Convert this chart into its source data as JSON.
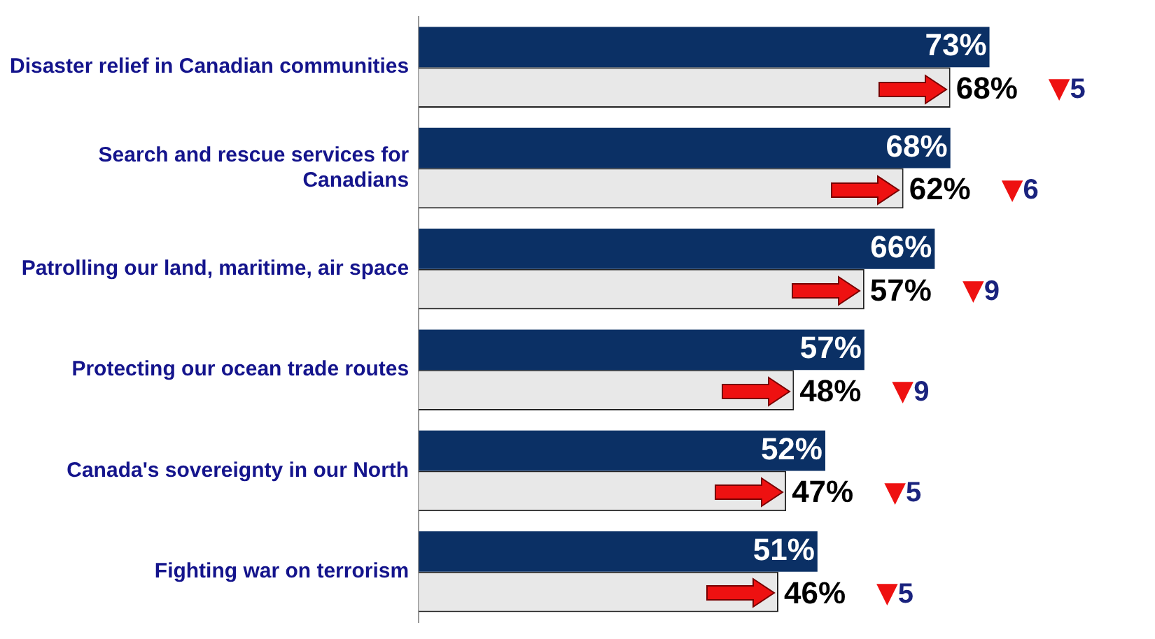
{
  "chart_data": {
    "type": "bar",
    "orientation": "horizontal",
    "categories": [
      "Disaster relief in Canadian communities",
      "Search and rescue services for Canadians",
      "Patrolling our land, maritime, air space",
      "Protecting our ocean trade routes",
      "Canada's sovereignty in our North",
      "Fighting war on terrorism"
    ],
    "series": [
      {
        "color": "#0b3065",
        "values": [
          73,
          68,
          66,
          57,
          52,
          51
        ],
        "value_labels": [
          "73%",
          "68%",
          "66%",
          "57%",
          "52%",
          "51%"
        ]
      },
      {
        "color": "#e8e8e8",
        "values": [
          68,
          62,
          57,
          48,
          47,
          46
        ],
        "value_labels": [
          "68%",
          "62%",
          "57%",
          "48%",
          "47%",
          "46%"
        ]
      }
    ],
    "annotations": [
      "▼5",
      "▼6",
      "▼9",
      "▼9",
      "▼5",
      "▼5"
    ],
    "legend": false,
    "grid": false
  }
}
